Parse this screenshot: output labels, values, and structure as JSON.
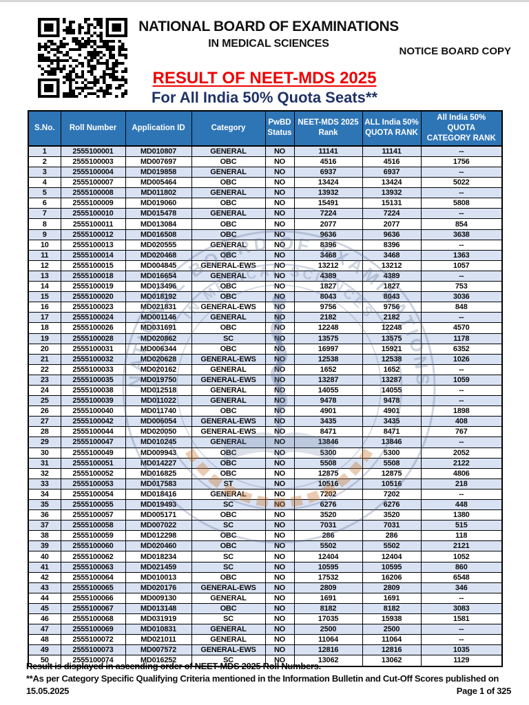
{
  "header": {
    "org_line1": "NATIONAL BOARD OF EXAMINATIONS",
    "org_line2": "IN MEDICAL SCIENCES",
    "notice": "NOTICE BOARD COPY",
    "title": "RESULT OF NEET-MDS 2025",
    "subtitle": "For All India 50% Quota Seats**"
  },
  "colors": {
    "title_red": "#ee0000",
    "subtitle_navy": "#1f3265",
    "table_header_bg": "#2e75b6",
    "row_alt_bg": "#d9e2f3",
    "border": "#000000"
  },
  "watermark": {
    "ring_text_top": "NATIONAL BOARD OF EXAMINATIONS",
    "ring_text_inner": "IN MEDICAL SCIENCES"
  },
  "table": {
    "columns": [
      [
        "S.No."
      ],
      [
        "Roll Number"
      ],
      [
        "Application ID"
      ],
      [
        "Category"
      ],
      [
        "PwBD",
        "Status"
      ],
      [
        "NEET-MDS 2025",
        "Rank"
      ],
      [
        "ALL India 50%",
        "QUOTA RANK"
      ],
      [
        "All India 50% QUOTA",
        "CATEGORY RANK"
      ]
    ],
    "rows": [
      [
        "1",
        "2555100001",
        "MD010807",
        "GENERAL",
        "NO",
        "11141",
        "11141",
        "--"
      ],
      [
        "2",
        "2555100003",
        "MD007697",
        "OBC",
        "NO",
        "4516",
        "4516",
        "1756"
      ],
      [
        "3",
        "2555100004",
        "MD019858",
        "GENERAL",
        "NO",
        "6937",
        "6937",
        "--"
      ],
      [
        "4",
        "2555100007",
        "MD005464",
        "OBC",
        "NO",
        "13424",
        "13424",
        "5022"
      ],
      [
        "5",
        "2555100008",
        "MD011802",
        "GENERAL",
        "NO",
        "13932",
        "13932",
        "--"
      ],
      [
        "6",
        "2555100009",
        "MD019060",
        "OBC",
        "NO",
        "15491",
        "15131",
        "5808"
      ],
      [
        "7",
        "2555100010",
        "MD015478",
        "GENERAL",
        "NO",
        "7224",
        "7224",
        "--"
      ],
      [
        "8",
        "2555100011",
        "MD013084",
        "OBC",
        "NO",
        "2077",
        "2077",
        "854"
      ],
      [
        "9",
        "2555100012",
        "MD016508",
        "OBC",
        "NO",
        "9636",
        "9636",
        "3638"
      ],
      [
        "10",
        "2555100013",
        "MD020555",
        "GENERAL",
        "NO",
        "8396",
        "8396",
        "--"
      ],
      [
        "11",
        "2555100014",
        "MD020468",
        "OBC",
        "NO",
        "3468",
        "3468",
        "1363"
      ],
      [
        "12",
        "2555100015",
        "MD004845",
        "GENERAL-EWS",
        "NO",
        "13212",
        "13212",
        "1057"
      ],
      [
        "13",
        "2555100018",
        "MD016654",
        "GENERAL",
        "NO",
        "4389",
        "4389",
        "--"
      ],
      [
        "14",
        "2555100019",
        "MD013496",
        "OBC",
        "NO",
        "1827",
        "1827",
        "753"
      ],
      [
        "15",
        "2555100020",
        "MD018192",
        "OBC",
        "NO",
        "8043",
        "8043",
        "3036"
      ],
      [
        "16",
        "2555100023",
        "MD021831",
        "GENERAL-EWS",
        "NO",
        "9756",
        "9756",
        "848"
      ],
      [
        "17",
        "2555100024",
        "MD001146",
        "GENERAL",
        "NO",
        "2182",
        "2182",
        "--"
      ],
      [
        "18",
        "2555100026",
        "MD031691",
        "OBC",
        "NO",
        "12248",
        "12248",
        "4570"
      ],
      [
        "19",
        "2555100028",
        "MD020862",
        "SC",
        "NO",
        "13575",
        "13575",
        "1178"
      ],
      [
        "20",
        "2555100031",
        "MD006344",
        "OBC",
        "NO",
        "16997",
        "15921",
        "6352"
      ],
      [
        "21",
        "2555100032",
        "MD020628",
        "GENERAL-EWS",
        "NO",
        "12538",
        "12538",
        "1026"
      ],
      [
        "22",
        "2555100033",
        "MD020162",
        "GENERAL",
        "NO",
        "1652",
        "1652",
        "--"
      ],
      [
        "23",
        "2555100035",
        "MD019750",
        "GENERAL-EWS",
        "NO",
        "13287",
        "13287",
        "1059"
      ],
      [
        "24",
        "2555100038",
        "MD012518",
        "GENERAL",
        "NO",
        "14055",
        "14055",
        "--"
      ],
      [
        "25",
        "2555100039",
        "MD011022",
        "GENERAL",
        "NO",
        "9478",
        "9478",
        "--"
      ],
      [
        "26",
        "2555100040",
        "MD011740",
        "OBC",
        "NO",
        "4901",
        "4901",
        "1898"
      ],
      [
        "27",
        "2555100042",
        "MD006054",
        "GENERAL-EWS",
        "NO",
        "3435",
        "3435",
        "408"
      ],
      [
        "28",
        "2555100044",
        "MD020050",
        "GENERAL-EWS",
        "NO",
        "8471",
        "8471",
        "767"
      ],
      [
        "29",
        "2555100047",
        "MD010245",
        "GENERAL",
        "NO",
        "13846",
        "13846",
        "--"
      ],
      [
        "30",
        "2555100049",
        "MD009943",
        "OBC",
        "NO",
        "5300",
        "5300",
        "2052"
      ],
      [
        "31",
        "2555100051",
        "MD014227",
        "OBC",
        "NO",
        "5508",
        "5508",
        "2122"
      ],
      [
        "32",
        "2555100052",
        "MD016825",
        "OBC",
        "NO",
        "12875",
        "12875",
        "4806"
      ],
      [
        "33",
        "2555100053",
        "MD017583",
        "ST",
        "NO",
        "10516",
        "10516",
        "218"
      ],
      [
        "34",
        "2555100054",
        "MD018416",
        "GENERAL",
        "NO",
        "7202",
        "7202",
        "--"
      ],
      [
        "35",
        "2555100055",
        "MD019493",
        "SC",
        "NO",
        "6276",
        "6276",
        "448"
      ],
      [
        "36",
        "2555100057",
        "MD005171",
        "OBC",
        "NO",
        "3520",
        "3520",
        "1380"
      ],
      [
        "37",
        "2555100058",
        "MD007022",
        "SC",
        "NO",
        "7031",
        "7031",
        "515"
      ],
      [
        "38",
        "2555100059",
        "MD012298",
        "OBC",
        "NO",
        "286",
        "286",
        "118"
      ],
      [
        "39",
        "2555100060",
        "MD020460",
        "OBC",
        "NO",
        "5502",
        "5502",
        "2121"
      ],
      [
        "40",
        "2555100062",
        "MD018234",
        "SC",
        "NO",
        "12404",
        "12404",
        "1052"
      ],
      [
        "41",
        "2555100063",
        "MD021459",
        "SC",
        "NO",
        "10595",
        "10595",
        "860"
      ],
      [
        "42",
        "2555100064",
        "MD010013",
        "OBC",
        "NO",
        "17532",
        "16206",
        "6548"
      ],
      [
        "43",
        "2555100065",
        "MD020176",
        "GENERAL-EWS",
        "NO",
        "2809",
        "2809",
        "346"
      ],
      [
        "44",
        "2555100066",
        "MD009130",
        "GENERAL",
        "NO",
        "1691",
        "1691",
        "--"
      ],
      [
        "45",
        "2555100067",
        "MD013148",
        "OBC",
        "NO",
        "8182",
        "8182",
        "3083"
      ],
      [
        "46",
        "2555100068",
        "MD031919",
        "SC",
        "NO",
        "17035",
        "15938",
        "1581"
      ],
      [
        "47",
        "2555100069",
        "MD010831",
        "GENERAL",
        "NO",
        "2500",
        "2500",
        "--"
      ],
      [
        "48",
        "2555100072",
        "MD021011",
        "GENERAL",
        "NO",
        "11064",
        "11064",
        "--"
      ],
      [
        "49",
        "2555100073",
        "MD007572",
        "GENERAL-EWS",
        "NO",
        "12816",
        "12816",
        "1035"
      ],
      [
        "50",
        "2555100074",
        "MD016252",
        "SC",
        "NO",
        "13062",
        "13062",
        "1129"
      ]
    ]
  },
  "footer": {
    "line1": "Result is displayed in ascending order of NEET-MDS 2025 Roll Numbers.",
    "line2": "**As per Category Specific Qualifying Criteria mentioned in the Information Bulletin and Cut-Off Scores published on",
    "date": "15.05.2025",
    "page": "Page 1 of 325"
  }
}
